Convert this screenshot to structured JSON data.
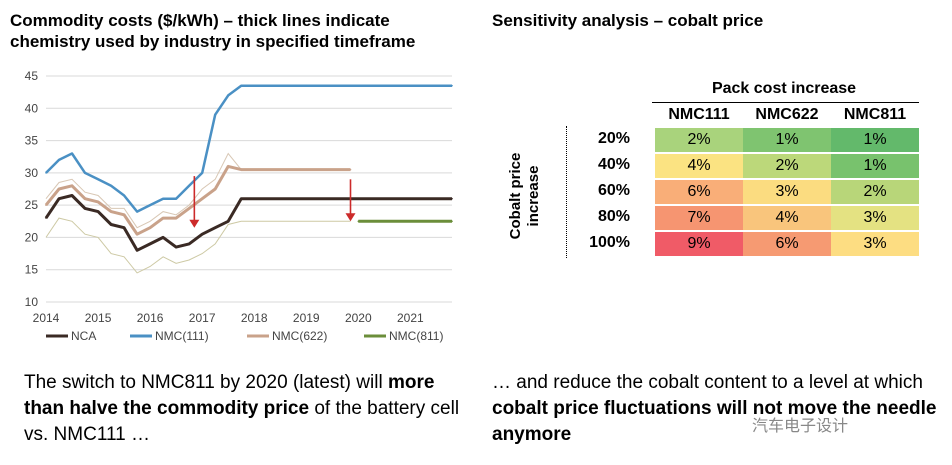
{
  "left": {
    "title_line1": "Commodity costs ($/kWh) – thick lines indicate",
    "title_line2": "chemistry used by industry in specified timeframe",
    "caption_part1": "The switch to NMC811 by 2020 (latest) will ",
    "caption_bold": "more than halve the commodity price",
    "caption_part2": " of the battery cell vs. NMC111 …"
  },
  "right": {
    "title": "Sensitivity analysis – cobalt price",
    "caption_part1": "… and reduce the cobalt content to a level at which ",
    "caption_bold": "cobalt price fluctuations will not move the needle anymore"
  },
  "watermark": "汽车电子设计",
  "chart_data": [
    {
      "type": "line",
      "title": "Commodity costs ($/kWh) – thick lines indicate chemistry used by industry in specified timeframe",
      "x": [
        2014.0,
        2014.25,
        2014.5,
        2014.75,
        2015.0,
        2015.25,
        2015.5,
        2015.75,
        2016.0,
        2016.25,
        2016.5,
        2016.75,
        2017.0,
        2017.25,
        2017.5,
        2017.75,
        2018.0,
        2019.0,
        2019.85,
        2020.0,
        2021.0,
        2021.8
      ],
      "xlim": [
        2014,
        2021.8
      ],
      "ylim": [
        10,
        45
      ],
      "x_ticks": [
        "2014",
        "2015",
        "2016",
        "2017",
        "2018",
        "2019",
        "2020",
        "2021"
      ],
      "y_ticks": [
        "10",
        "15",
        "20",
        "25",
        "30",
        "35",
        "40",
        "45"
      ],
      "series": [
        {
          "name": "NCA",
          "color": "#3a2a24",
          "values": [
            23,
            26,
            26.5,
            24.5,
            24,
            22,
            21.5,
            18,
            19,
            20,
            18.5,
            19,
            20.5,
            21.5,
            22.5,
            26,
            26,
            26,
            26,
            26,
            26,
            26
          ]
        },
        {
          "name": "NMC(111)",
          "color": "#4a90c4",
          "values": [
            30,
            32,
            33,
            30,
            29,
            28,
            26.5,
            24,
            25,
            26,
            26,
            28,
            30,
            39,
            42,
            43.5,
            43.5,
            43.5,
            43.5,
            43.5,
            43.5,
            43.5
          ]
        },
        {
          "name": "NMC(622)",
          "color": "#c9a28a",
          "values": [
            25,
            27.5,
            28,
            26,
            25.5,
            24,
            23.5,
            20.5,
            21.5,
            23,
            23,
            24.5,
            26,
            27.5,
            31,
            30.5,
            30.5,
            30.5,
            30.5,
            null,
            null,
            null
          ]
        },
        {
          "name": "NMC(811)",
          "color": "#6b8e3a",
          "values": [
            null,
            null,
            null,
            null,
            null,
            null,
            null,
            null,
            null,
            null,
            null,
            null,
            null,
            null,
            null,
            null,
            null,
            null,
            null,
            22.5,
            22.5,
            22.5
          ]
        }
      ],
      "band_low_values": [
        20,
        23,
        22.5,
        20.5,
        20,
        17.5,
        17,
        14.5,
        15.5,
        17,
        16,
        16.5,
        17.5,
        19,
        22,
        22.5,
        22.5,
        22.5,
        22.5,
        null,
        null,
        null
      ],
      "band_high_values": [
        26,
        28.5,
        29,
        27,
        26.5,
        24.5,
        24.5,
        21.5,
        22.5,
        24,
        23.5,
        25,
        27.5,
        29,
        33,
        30.5,
        30.5,
        30.5,
        30.5,
        null,
        null,
        null
      ],
      "arrows": [
        {
          "x": 2016.85,
          "from": 29.5,
          "to": 21.5,
          "color": "#cc2a2a"
        },
        {
          "x": 2019.85,
          "from": 29,
          "to": 22.5,
          "color": "#cc2a2a"
        }
      ],
      "legend": [
        "NCA",
        "NMC(111)",
        "NMC(622)",
        "NMC(811)"
      ],
      "legend_position": "bottom"
    },
    {
      "type": "heatmap",
      "title": "Sensitivity analysis – cobalt price",
      "column_header": "Pack cost increase",
      "row_header": "Cobalt price increase",
      "columns": [
        "NMC111",
        "NMC622",
        "NMC811"
      ],
      "rows": [
        "20%",
        "40%",
        "60%",
        "80%",
        "100%"
      ],
      "values": [
        [
          "2%",
          "1%",
          "1%"
        ],
        [
          "4%",
          "2%",
          "1%"
        ],
        [
          "6%",
          "3%",
          "2%"
        ],
        [
          "7%",
          "4%",
          "3%"
        ],
        [
          "9%",
          "6%",
          "3%"
        ]
      ],
      "colors": [
        [
          "#a9d37c",
          "#7fc470",
          "#63b96b"
        ],
        [
          "#fbe382",
          "#bcd87a",
          "#78c26d"
        ],
        [
          "#f9ae78",
          "#fbdc80",
          "#b8d679"
        ],
        [
          "#f69571",
          "#f9c57c",
          "#e4e282"
        ],
        [
          "#f05b67",
          "#f69a72",
          "#fddd82"
        ]
      ]
    }
  ]
}
